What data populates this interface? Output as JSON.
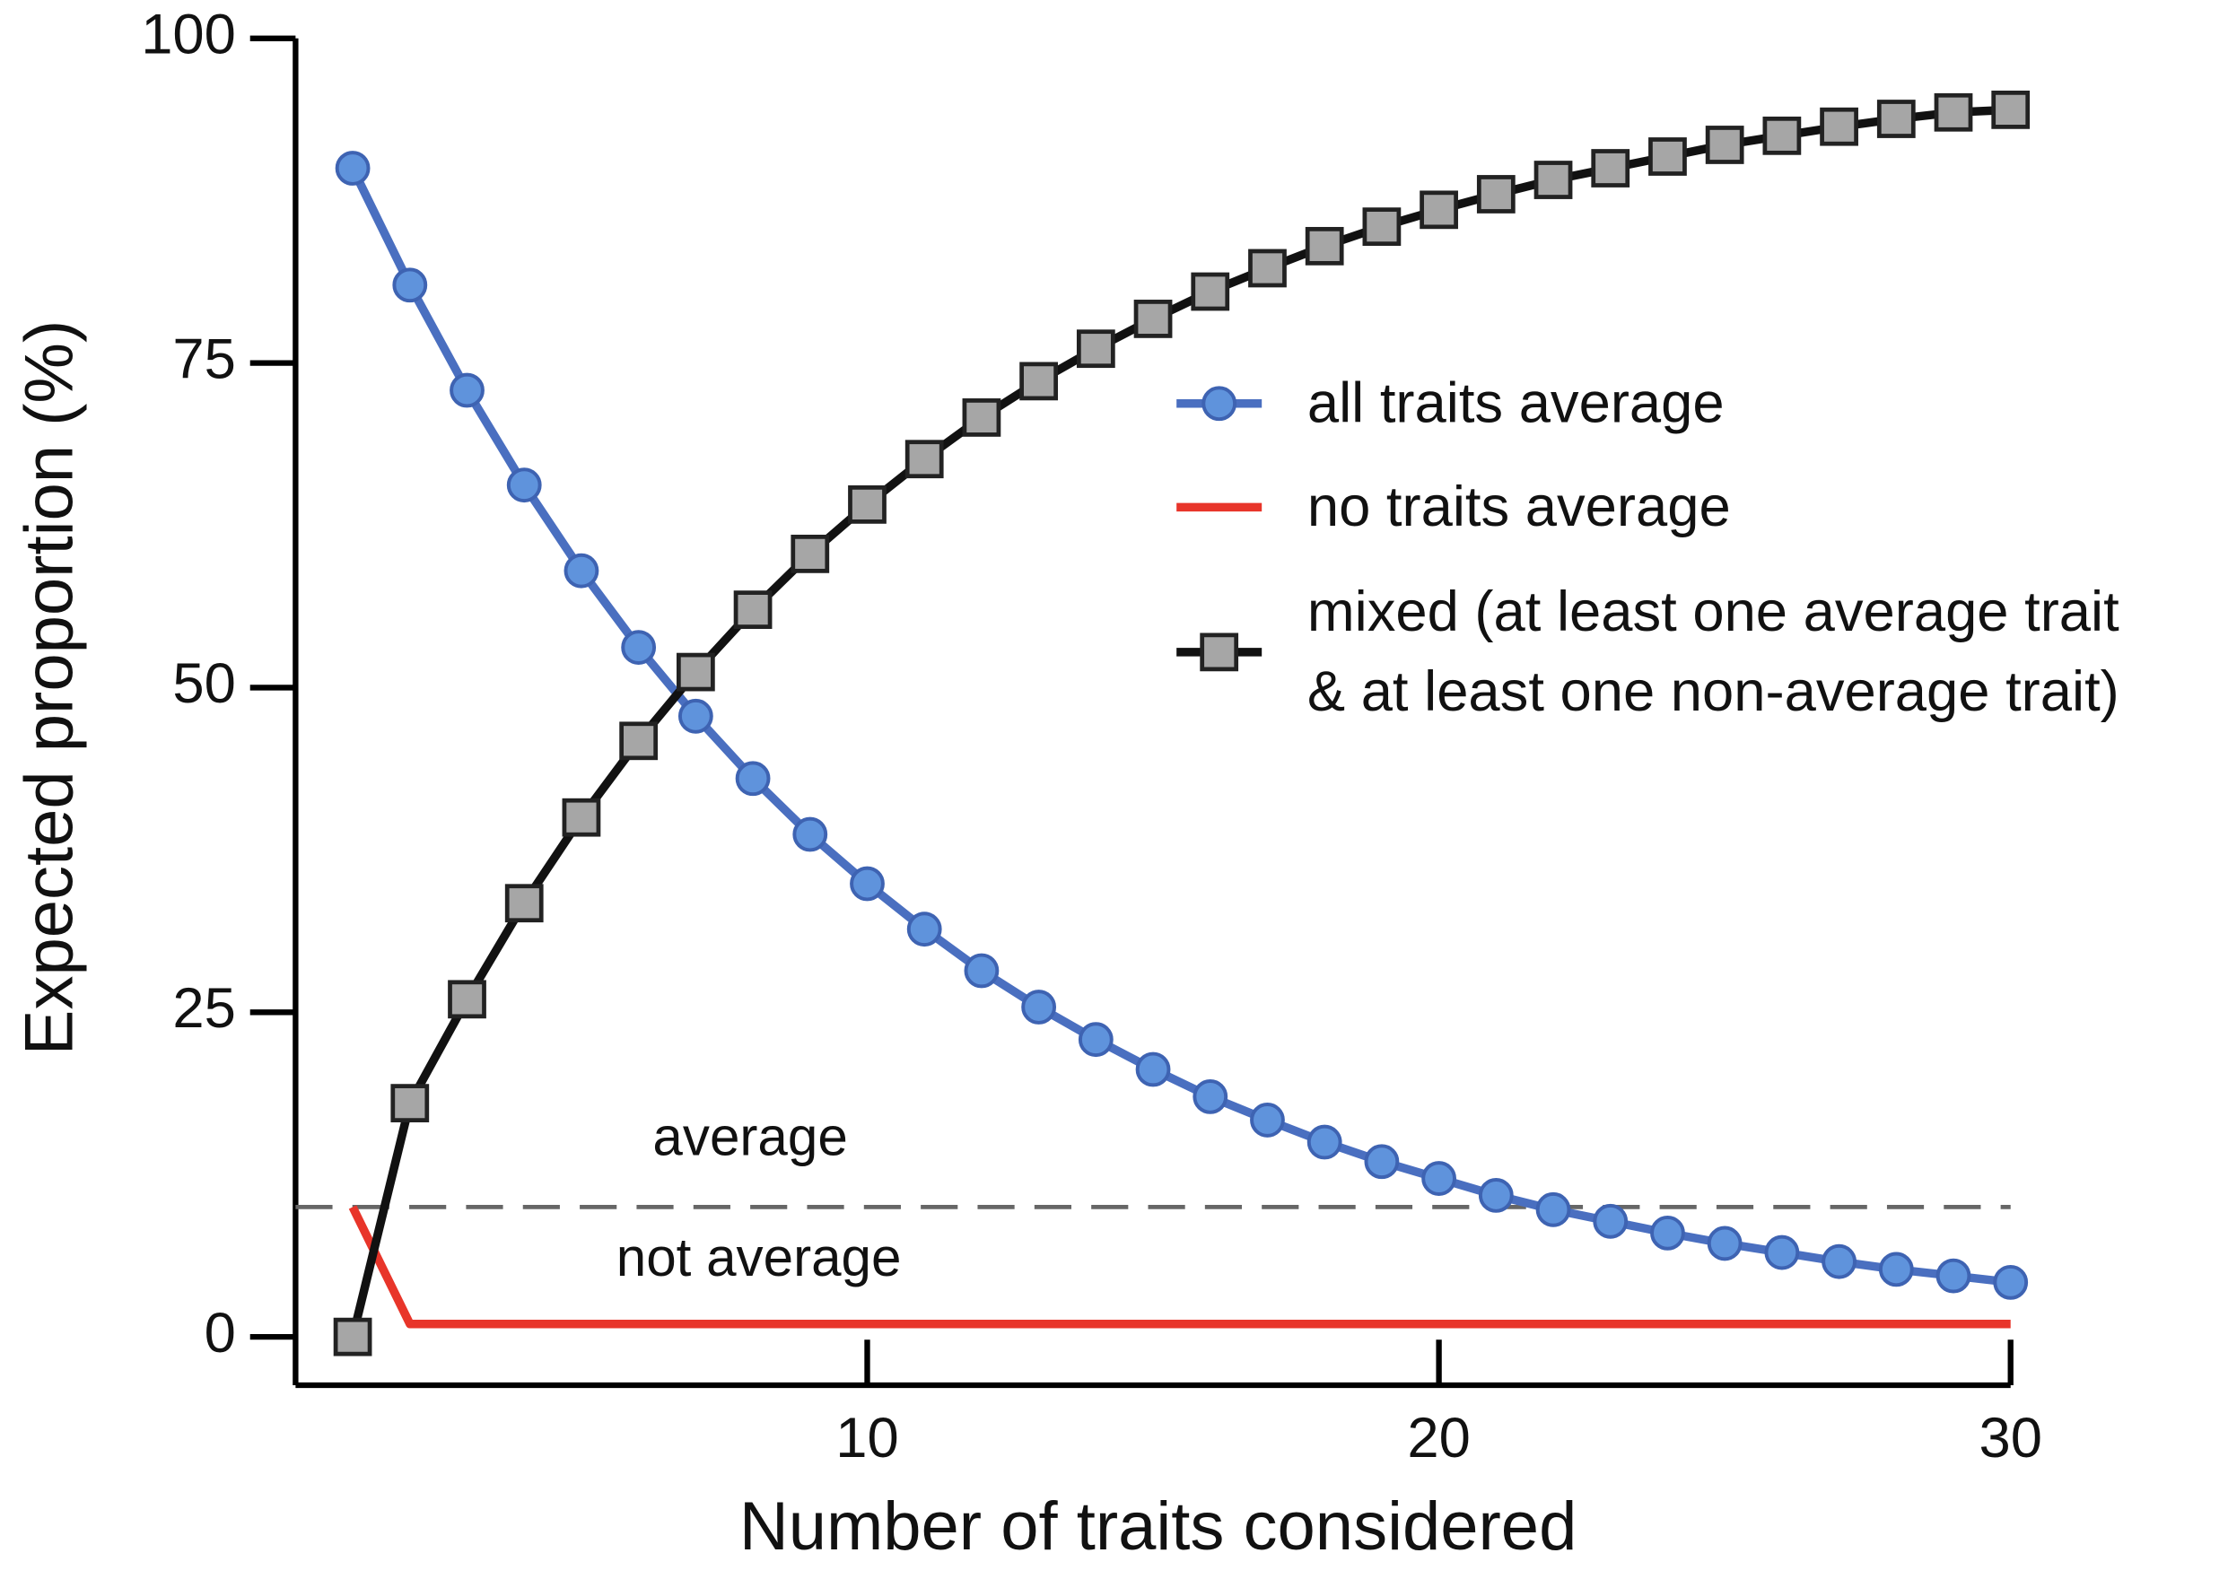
{
  "chart_data": {
    "type": "line",
    "x_label": "Number of traits considered",
    "y_label": "Expected proportion (%)",
    "x": [
      1,
      2,
      3,
      4,
      5,
      6,
      7,
      8,
      9,
      10,
      11,
      12,
      13,
      14,
      15,
      16,
      17,
      18,
      19,
      20,
      21,
      22,
      23,
      24,
      25,
      26,
      27,
      28,
      29,
      30
    ],
    "xlim": [
      0,
      30
    ],
    "xticks": [
      10,
      20,
      30
    ],
    "ylim": [
      0,
      100
    ],
    "yticks": [
      0,
      25,
      50,
      75,
      100
    ],
    "threshold": 10,
    "annotations": [
      "average",
      "not average"
    ],
    "series": [
      {
        "name": "all traits average",
        "color": "#4a6fc0",
        "marker": "circle",
        "values": [
          90,
          81,
          72.9,
          65.6,
          59,
          53.1,
          47.8,
          43,
          38.7,
          34.9,
          31.4,
          28.2,
          25.4,
          22.9,
          20.6,
          18.5,
          16.7,
          15,
          13.5,
          12.2,
          10.9,
          9.8,
          8.9,
          8,
          7.2,
          6.5,
          5.8,
          5.2,
          4.7,
          4.2
        ]
      },
      {
        "name": "no traits average",
        "color": "#e8352a",
        "marker": "none",
        "values": [
          10,
          1,
          1,
          1,
          1,
          1,
          1,
          1,
          1,
          1,
          1,
          1,
          1,
          1,
          1,
          1,
          1,
          1,
          1,
          1,
          1,
          1,
          1,
          1,
          1,
          1,
          1,
          1,
          1,
          1
        ]
      },
      {
        "name": "mixed (at least one average trait\n& at least one non-average trait)",
        "color": "#111111",
        "marker": "square",
        "values": [
          0,
          18,
          26,
          33.4,
          40,
          45.9,
          51.2,
          56,
          60.3,
          64.1,
          67.6,
          70.8,
          73.6,
          76.1,
          78.4,
          80.5,
          82.3,
          84,
          85.5,
          86.8,
          88,
          89.1,
          90,
          90.9,
          91.8,
          92.5,
          93.2,
          93.8,
          94.3,
          94.5
        ]
      }
    ]
  }
}
